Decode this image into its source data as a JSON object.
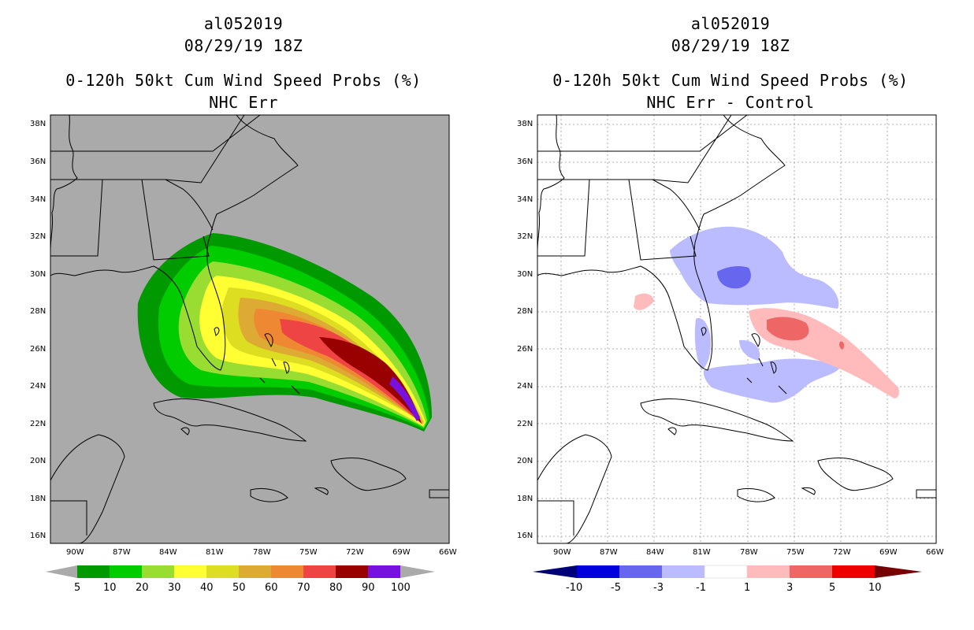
{
  "left_panel": {
    "storm_id": "al052019",
    "datetime": "08/29/19 18Z",
    "product": "0-120h 50kt Cum Wind Speed Probs (%)",
    "subtitle": "NHC Err",
    "colorbar_labels": [
      "5",
      "10",
      "20",
      "30",
      "40",
      "50",
      "60",
      "70",
      "80",
      "90",
      "100"
    ],
    "colorbar_colors": [
      "#009900",
      "#00cc00",
      "#99dd33",
      "#ffff33",
      "#dddd22",
      "#ddaa33",
      "#ee8833",
      "#ee4444",
      "#990000",
      "#7711dd"
    ],
    "background_color": "#aaaaaa"
  },
  "right_panel": {
    "storm_id": "al052019",
    "datetime": "08/29/19 18Z",
    "product": "0-120h 50kt Cum Wind Speed Probs (%)",
    "subtitle": "NHC Err - Control",
    "colorbar_labels": [
      "-10",
      "-5",
      "-3",
      "-1",
      "1",
      "3",
      "5",
      "10"
    ],
    "colorbar_colors": [
      "#0000dd",
      "#6666ee",
      "#bbbbff",
      "#ffffff",
      "#ffbbbb",
      "#ee6666",
      "#ee0000"
    ],
    "background_color": "#ffffff"
  },
  "axes": {
    "lat_labels": [
      "38N",
      "36N",
      "34N",
      "32N",
      "30N",
      "28N",
      "26N",
      "24N",
      "22N",
      "20N",
      "18N",
      "16N"
    ],
    "lon_labels": [
      "90W",
      "87W",
      "84W",
      "81W",
      "78W",
      "75W",
      "72W",
      "69W",
      "66W"
    ]
  }
}
